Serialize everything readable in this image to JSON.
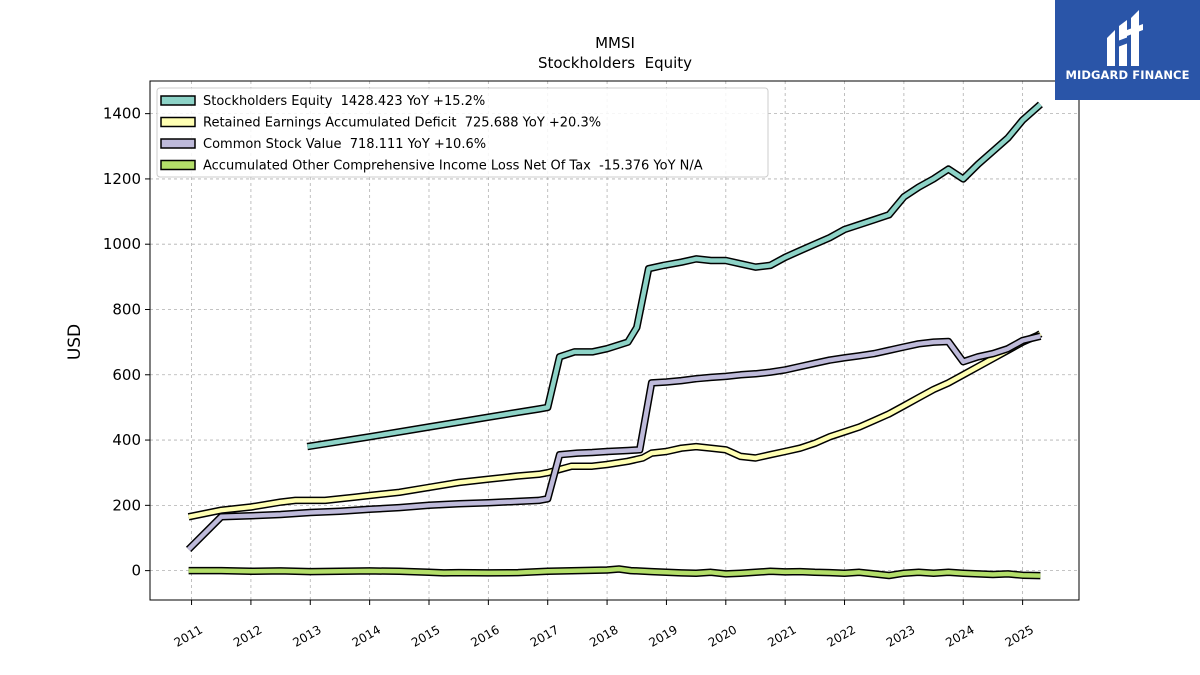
{
  "chart_data": {
    "type": "line",
    "title": "MMSI",
    "subtitle": "Stockholders  Equity",
    "ylabel": "USD",
    "xlabel": "",
    "xlim": [
      2010.3,
      2025.95
    ],
    "ylim": [
      -90,
      1500
    ],
    "yticks": [
      0,
      200,
      400,
      600,
      800,
      1000,
      1200,
      1400
    ],
    "xticks": [
      "2011",
      "2012",
      "2013",
      "2014",
      "2015",
      "2016",
      "2017",
      "2018",
      "2019",
      "2020",
      "2021",
      "2022",
      "2023",
      "2024",
      "2025"
    ],
    "grid": true,
    "legend_position": "top-left",
    "series": [
      {
        "name": "Stockholders Equity  1428.423 YoY +15.2%",
        "color": "#8dd3c7",
        "x": [
          2012.95,
          2014.0,
          2015.0,
          2016.0,
          2016.5,
          2016.85,
          2017.0,
          2017.2,
          2017.45,
          2017.75,
          2018.0,
          2018.35,
          2018.5,
          2018.7,
          2018.95,
          2019.25,
          2019.5,
          2019.75,
          2020.0,
          2020.25,
          2020.5,
          2020.75,
          2021.0,
          2021.25,
          2021.5,
          2021.75,
          2022.0,
          2022.25,
          2022.5,
          2022.75,
          2023.0,
          2023.25,
          2023.5,
          2023.75,
          2024.0,
          2024.25,
          2024.5,
          2024.75,
          2025.0,
          2025.3
        ],
        "y": [
          380,
          410,
          440,
          470,
          485,
          495,
          500,
          655,
          670,
          670,
          680,
          700,
          745,
          925,
          935,
          945,
          955,
          950,
          950,
          940,
          930,
          935,
          960,
          980,
          1000,
          1020,
          1045,
          1060,
          1075,
          1090,
          1145,
          1175,
          1200,
          1230,
          1200,
          1245,
          1285,
          1325,
          1380,
          1428.423
        ]
      },
      {
        "name": "Retained Earnings Accumulated Deficit  725.688 YoY +20.3%",
        "color": "#ffffb3",
        "x": [
          2010.95,
          2011.5,
          2012.0,
          2012.5,
          2012.75,
          2013.25,
          2013.75,
          2014.0,
          2014.5,
          2015.0,
          2015.5,
          2016.0,
          2016.5,
          2016.85,
          2017.0,
          2017.4,
          2017.75,
          2018.0,
          2018.35,
          2018.6,
          2018.75,
          2019.0,
          2019.25,
          2019.5,
          2019.75,
          2020.0,
          2020.25,
          2020.5,
          2020.75,
          2021.0,
          2021.25,
          2021.5,
          2021.75,
          2022.0,
          2022.25,
          2022.5,
          2022.75,
          2023.0,
          2023.25,
          2023.5,
          2023.75,
          2024.0,
          2024.25,
          2024.5,
          2024.75,
          2025.0,
          2025.25,
          2025.3
        ],
        "y": [
          165,
          185,
          195,
          210,
          215,
          215,
          225,
          230,
          240,
          255,
          270,
          280,
          290,
          295,
          300,
          320,
          320,
          325,
          335,
          345,
          360,
          365,
          375,
          380,
          375,
          370,
          350,
          345,
          355,
          365,
          375,
          390,
          410,
          425,
          440,
          460,
          480,
          505,
          530,
          555,
          575,
          600,
          625,
          650,
          675,
          700,
          720,
          725.688
        ]
      },
      {
        "name": "Common Stock Value  718.111 YoY +10.6%",
        "color": "#bebada",
        "x": [
          2010.95,
          2011.5,
          2012.0,
          2012.5,
          2013.0,
          2013.5,
          2014.0,
          2014.5,
          2015.0,
          2015.5,
          2016.0,
          2016.5,
          2016.85,
          2017.0,
          2017.2,
          2017.5,
          2017.75,
          2018.0,
          2018.35,
          2018.55,
          2018.75,
          2019.0,
          2019.25,
          2019.5,
          2019.75,
          2020.0,
          2020.25,
          2020.5,
          2020.75,
          2021.0,
          2021.25,
          2021.5,
          2021.75,
          2022.0,
          2022.25,
          2022.5,
          2022.75,
          2023.0,
          2023.25,
          2023.5,
          2023.75,
          2024.0,
          2024.25,
          2024.5,
          2024.75,
          2025.0,
          2025.3
        ],
        "y": [
          65,
          165,
          168,
          172,
          178,
          182,
          188,
          193,
          200,
          205,
          208,
          212,
          215,
          220,
          355,
          360,
          362,
          365,
          368,
          370,
          575,
          578,
          582,
          588,
          592,
          595,
          600,
          603,
          608,
          615,
          625,
          635,
          645,
          652,
          658,
          665,
          675,
          685,
          695,
          700,
          702,
          640,
          655,
          665,
          680,
          705,
          718.111
        ]
      },
      {
        "name": "Accumulated Other Comprehensive Income Loss Net Of Tax  -15.376 YoY N/A",
        "color": "#b3de69",
        "x": [
          2010.95,
          2011.5,
          2012.0,
          2012.5,
          2013.0,
          2013.5,
          2014.0,
          2014.5,
          2015.0,
          2015.25,
          2015.5,
          2016.0,
          2016.5,
          2017.0,
          2017.5,
          2018.0,
          2018.2,
          2018.4,
          2018.75,
          2019.0,
          2019.25,
          2019.5,
          2019.75,
          2020.0,
          2020.25,
          2020.5,
          2020.75,
          2021.0,
          2021.25,
          2021.5,
          2021.75,
          2022.0,
          2022.25,
          2022.5,
          2022.75,
          2023.0,
          2023.25,
          2023.5,
          2023.75,
          2024.0,
          2024.25,
          2024.5,
          2024.75,
          2025.0,
          2025.3
        ],
        "y": [
          0,
          0,
          -2,
          -1,
          -3,
          -2,
          -1,
          -2,
          -5,
          -7,
          -6,
          -7,
          -6,
          -2,
          0,
          2,
          5,
          0,
          -3,
          -5,
          -7,
          -8,
          -5,
          -10,
          -8,
          -5,
          -2,
          -4,
          -3,
          -5,
          -6,
          -8,
          -5,
          -10,
          -15,
          -8,
          -5,
          -8,
          -5,
          -8,
          -10,
          -12,
          -10,
          -14,
          -15.376
        ]
      }
    ]
  },
  "logo": {
    "text": "MIDGARD FINANCE"
  }
}
